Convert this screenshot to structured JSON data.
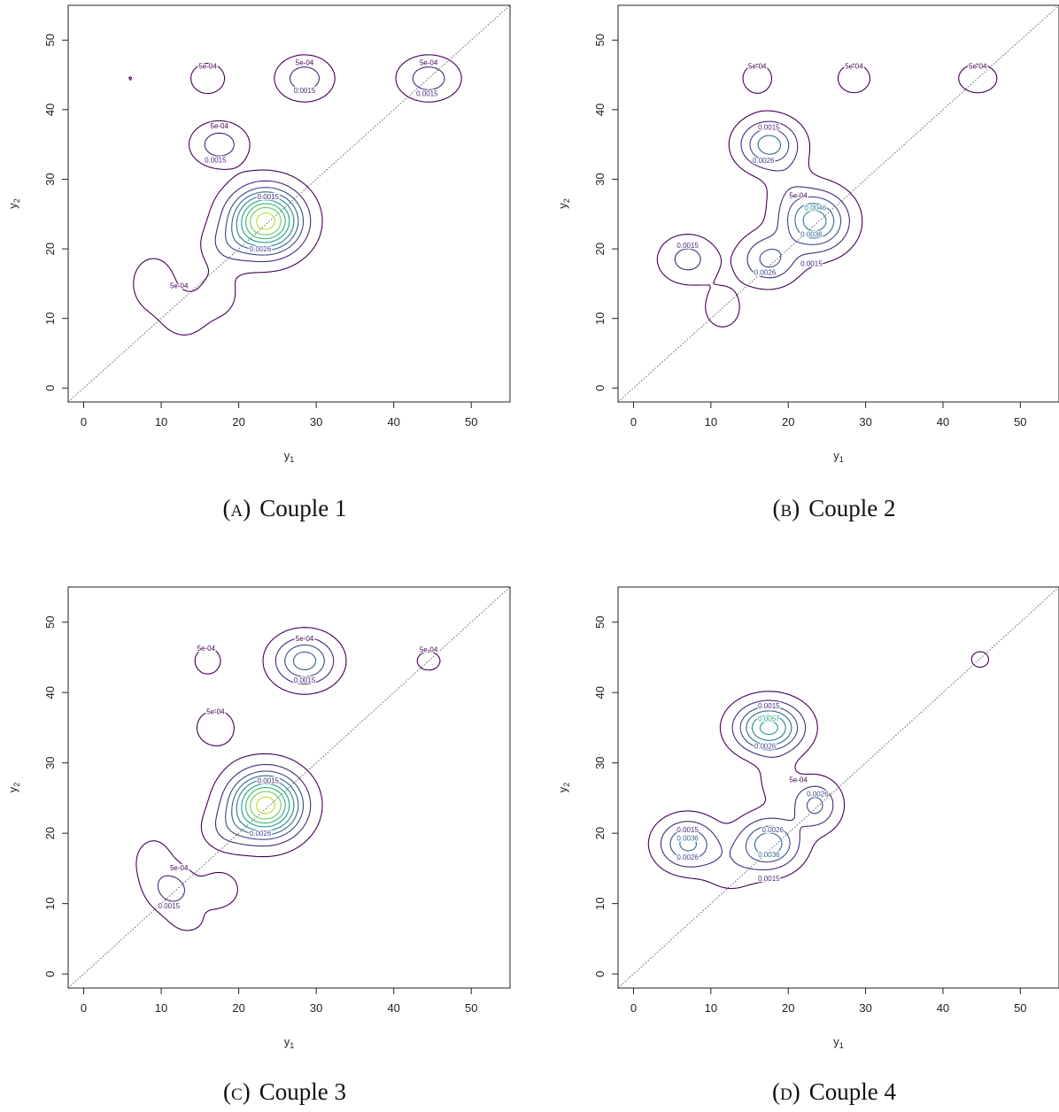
{
  "colors": {
    "viridis": [
      "#440154",
      "#482878",
      "#3E4989",
      "#31688E",
      "#26828E",
      "#1F9E89",
      "#35B779",
      "#6DCD59",
      "#B4DE2C",
      "#FDE725"
    ],
    "diagonal": "#555555",
    "frame": "#222222"
  },
  "chart_data": [
    {
      "type": "contour",
      "caption_letter": "(a)",
      "caption_text": "Couple 1",
      "xlabel": "y",
      "xlabel_sub": "1",
      "ylabel": "y",
      "ylabel_sub": "2",
      "xlim": [
        -2,
        55
      ],
      "ylim": [
        -2,
        55
      ],
      "x_ticks": [
        "0",
        "10",
        "20",
        "30",
        "40",
        "50"
      ],
      "y_ticks": [
        "0",
        "10",
        "20",
        "30",
        "40",
        "50"
      ],
      "diagonal": "y2 = y1",
      "peaks": [
        {
          "x": 23.5,
          "y": 24.0,
          "h": 0.0095,
          "sx": 3.0,
          "sy": 3.0
        },
        {
          "x": 18.5,
          "y": 20.5,
          "h": 0.0012,
          "sx": 2.2,
          "sy": 2.0
        },
        {
          "x": 17.5,
          "y": 35.0,
          "h": 0.0021,
          "sx": 2.3,
          "sy": 2.0
        },
        {
          "x": 28.5,
          "y": 44.5,
          "h": 0.0021,
          "sx": 2.3,
          "sy": 2.0
        },
        {
          "x": 44.5,
          "y": 44.5,
          "h": 0.0021,
          "sx": 2.5,
          "sy": 2.0
        },
        {
          "x": 16.0,
          "y": 44.5,
          "h": 0.0009,
          "sx": 2.0,
          "sy": 2.0
        },
        {
          "x": 6.0,
          "y": 44.5,
          "h": 0.00052,
          "sx": 0.9,
          "sy": 0.9
        },
        {
          "x": 9.0,
          "y": 15.0,
          "h": 0.00085,
          "sx": 2.5,
          "sy": 3.5
        },
        {
          "x": 13.0,
          "y": 10.0,
          "h": 0.00075,
          "sx": 2.2,
          "sy": 2.4
        },
        {
          "x": 17.5,
          "y": 13.5,
          "h": 0.00075,
          "sx": 2.2,
          "sy": 3.0
        }
      ],
      "levels": [
        0.0005,
        0.0015,
        0.0026,
        0.0036,
        0.0046,
        0.0057,
        0.0067,
        0.0077,
        0.0088
      ],
      "level_labels": [
        {
          "text": "5e-04",
          "x": 16.0,
          "y": 46.2
        },
        {
          "text": "5e-04",
          "x": 28.5,
          "y": 46.7
        },
        {
          "text": "5e-04",
          "x": 44.5,
          "y": 46.7
        },
        {
          "text": "0.0015",
          "x": 28.5,
          "y": 42.7
        },
        {
          "text": "0.0015",
          "x": 44.3,
          "y": 42.2
        },
        {
          "text": "5e-04",
          "x": 17.5,
          "y": 37.6
        },
        {
          "text": "0.0015",
          "x": 17.0,
          "y": 32.7
        },
        {
          "text": "0.0015",
          "x": 23.8,
          "y": 27.4
        },
        {
          "text": "0.0026",
          "x": 22.8,
          "y": 19.9
        },
        {
          "text": "5e-04",
          "x": 12.3,
          "y": 14.6
        }
      ]
    },
    {
      "type": "contour",
      "caption_letter": "(b)",
      "caption_text": "Couple 2",
      "xlabel": "y",
      "xlabel_sub": "1",
      "ylabel": "y",
      "ylabel_sub": "2",
      "xlim": [
        -2,
        55
      ],
      "ylim": [
        -2,
        55
      ],
      "x_ticks": [
        "0",
        "10",
        "20",
        "30",
        "40",
        "50"
      ],
      "y_ticks": [
        "0",
        "10",
        "20",
        "30",
        "40",
        "50"
      ],
      "diagonal": "y2 = y1",
      "peaks": [
        {
          "x": 23.5,
          "y": 24.0,
          "h": 0.0052,
          "sx": 2.8,
          "sy": 2.8
        },
        {
          "x": 17.5,
          "y": 35.0,
          "h": 0.0042,
          "sx": 2.5,
          "sy": 2.3
        },
        {
          "x": 17.5,
          "y": 18.5,
          "h": 0.0029,
          "sx": 2.4,
          "sy": 2.3
        },
        {
          "x": 7.0,
          "y": 18.5,
          "h": 0.0019,
          "sx": 2.4,
          "sy": 2.2
        },
        {
          "x": 16.0,
          "y": 44.5,
          "h": 0.00085,
          "sx": 1.8,
          "sy": 2.0
        },
        {
          "x": 28.5,
          "y": 44.5,
          "h": 0.00085,
          "sx": 2.0,
          "sy": 2.0
        },
        {
          "x": 44.5,
          "y": 44.5,
          "h": 0.00085,
          "sx": 2.4,
          "sy": 2.0
        },
        {
          "x": 20.0,
          "y": 29.0,
          "h": 0.0008,
          "sx": 2.0,
          "sy": 3.0
        },
        {
          "x": 11.5,
          "y": 11.5,
          "h": 0.0009,
          "sx": 2.0,
          "sy": 2.5
        }
      ],
      "levels": [
        0.0005,
        0.0015,
        0.0026,
        0.0036,
        0.0046
      ],
      "level_labels": [
        {
          "text": "5e-04",
          "x": 16.0,
          "y": 46.2
        },
        {
          "text": "5e-04",
          "x": 28.5,
          "y": 46.2
        },
        {
          "text": "5e-04",
          "x": 44.5,
          "y": 46.2
        },
        {
          "text": "0.0015",
          "x": 17.5,
          "y": 37.4
        },
        {
          "text": "0.0026",
          "x": 16.8,
          "y": 32.6
        },
        {
          "text": "5e-04",
          "x": 21.3,
          "y": 27.6
        },
        {
          "text": "0.0046",
          "x": 23.5,
          "y": 25.8
        },
        {
          "text": "0.0036",
          "x": 23.0,
          "y": 22.0
        },
        {
          "text": "0.0015",
          "x": 7.0,
          "y": 20.4
        },
        {
          "text": "0.0026",
          "x": 17.0,
          "y": 16.5
        },
        {
          "text": "0.0015",
          "x": 23.0,
          "y": 17.8
        }
      ]
    },
    {
      "type": "contour",
      "caption_letter": "(c)",
      "caption_text": "Couple 3",
      "xlabel": "y",
      "xlabel_sub": "1",
      "ylabel": "y",
      "ylabel_sub": "2",
      "xlim": [
        -2,
        55
      ],
      "ylim": [
        -2,
        55
      ],
      "x_ticks": [
        "0",
        "10",
        "20",
        "30",
        "40",
        "50"
      ],
      "y_ticks": [
        "0",
        "10",
        "20",
        "30",
        "40",
        "50"
      ],
      "diagonal": "y2 = y1",
      "peaks": [
        {
          "x": 23.5,
          "y": 24.0,
          "h": 0.0095,
          "sx": 3.0,
          "sy": 3.0
        },
        {
          "x": 18.5,
          "y": 20.5,
          "h": 0.0012,
          "sx": 2.2,
          "sy": 2.0
        },
        {
          "x": 28.5,
          "y": 44.5,
          "h": 0.0042,
          "sx": 2.6,
          "sy": 2.3
        },
        {
          "x": 16.0,
          "y": 44.5,
          "h": 0.00085,
          "sx": 1.6,
          "sy": 1.8
        },
        {
          "x": 17.0,
          "y": 35.0,
          "h": 0.0009,
          "sx": 2.2,
          "sy": 2.3
        },
        {
          "x": 44.5,
          "y": 44.5,
          "h": 0.0007,
          "sx": 1.8,
          "sy": 1.6
        },
        {
          "x": 11.5,
          "y": 12.0,
          "h": 0.0018,
          "sx": 2.0,
          "sy": 2.0
        },
        {
          "x": 17.5,
          "y": 12.0,
          "h": 0.0013,
          "sx": 1.7,
          "sy": 1.7
        },
        {
          "x": 9.0,
          "y": 16.0,
          "h": 0.0008,
          "sx": 2.2,
          "sy": 3.0
        },
        {
          "x": 13.5,
          "y": 7.5,
          "h": 0.0006,
          "sx": 2.5,
          "sy": 2.0
        }
      ],
      "levels": [
        0.0005,
        0.0015,
        0.0026,
        0.0036,
        0.0046,
        0.0057,
        0.0067,
        0.0077,
        0.0088
      ],
      "level_labels": [
        {
          "text": "5e-04",
          "x": 15.8,
          "y": 46.2
        },
        {
          "text": "5e-04",
          "x": 28.5,
          "y": 47.6
        },
        {
          "text": "5e-04",
          "x": 44.5,
          "y": 46.0
        },
        {
          "text": "0.0015",
          "x": 28.5,
          "y": 41.7
        },
        {
          "text": "5e-04",
          "x": 17.0,
          "y": 37.2
        },
        {
          "text": "0.0015",
          "x": 23.8,
          "y": 27.4
        },
        {
          "text": "0.0026",
          "x": 22.8,
          "y": 19.9
        },
        {
          "text": "5e-04",
          "x": 12.3,
          "y": 15.0
        },
        {
          "text": "0.0015",
          "x": 11.0,
          "y": 9.6
        }
      ]
    },
    {
      "type": "contour",
      "caption_letter": "(d)",
      "caption_text": "Couple 4",
      "xlabel": "y",
      "xlabel_sub": "1",
      "ylabel": "y",
      "ylabel_sub": "2",
      "xlim": [
        -2,
        55
      ],
      "ylim": [
        -2,
        55
      ],
      "x_ticks": [
        "0",
        "10",
        "20",
        "30",
        "40",
        "50"
      ],
      "y_ticks": [
        "0",
        "10",
        "20",
        "30",
        "40",
        "50"
      ],
      "diagonal": "y2 = y1",
      "peaks": [
        {
          "x": 17.5,
          "y": 35.0,
          "h": 0.0062,
          "sx": 2.8,
          "sy": 2.3
        },
        {
          "x": 17.5,
          "y": 18.5,
          "h": 0.0044,
          "sx": 2.6,
          "sy": 2.4
        },
        {
          "x": 7.0,
          "y": 18.5,
          "h": 0.0039,
          "sx": 2.5,
          "sy": 2.3
        },
        {
          "x": 23.5,
          "y": 24.0,
          "h": 0.0029,
          "sx": 2.0,
          "sy": 2.3
        },
        {
          "x": 44.8,
          "y": 44.7,
          "h": 0.00072,
          "sx": 1.3,
          "sy": 1.3
        },
        {
          "x": 12.5,
          "y": 15.0,
          "h": 0.0009,
          "sx": 2.5,
          "sy": 2.5
        },
        {
          "x": 18.5,
          "y": 27.5,
          "h": 0.00085,
          "sx": 1.8,
          "sy": 2.5
        }
      ],
      "levels": [
        0.0005,
        0.0015,
        0.0026,
        0.0036,
        0.0046,
        0.0057
      ],
      "level_labels": [
        {
          "text": "0.0015",
          "x": 17.5,
          "y": 38.0
        },
        {
          "text": "0.0057",
          "x": 17.5,
          "y": 36.2
        },
        {
          "text": "0.0026",
          "x": 17.0,
          "y": 32.3
        },
        {
          "text": "5e-04",
          "x": 21.3,
          "y": 27.5
        },
        {
          "text": "0.0026",
          "x": 23.8,
          "y": 25.5
        },
        {
          "text": "0.0015",
          "x": 7.0,
          "y": 20.4
        },
        {
          "text": "0.0036",
          "x": 7.0,
          "y": 19.2
        },
        {
          "text": "0.0026",
          "x": 7.0,
          "y": 16.5
        },
        {
          "text": "0.0026",
          "x": 18.0,
          "y": 20.4
        },
        {
          "text": "0.0036",
          "x": 17.5,
          "y": 16.9
        },
        {
          "text": "0.0015",
          "x": 17.5,
          "y": 13.5
        }
      ]
    }
  ]
}
